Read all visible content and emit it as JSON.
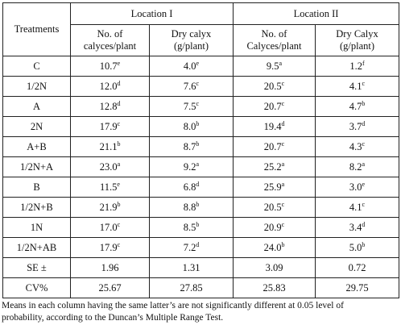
{
  "table": {
    "header": {
      "treatments_label": "Treatments",
      "locations": [
        "Location I",
        "Location II"
      ],
      "subcolumns": [
        [
          "No. of",
          "calyces/plant"
        ],
        [
          "Dry calyx",
          "(g/plant)"
        ],
        [
          "No. of",
          "Calyces/plant"
        ],
        [
          "Dry Calyx",
          "(g/plant)"
        ]
      ]
    },
    "rows": [
      {
        "treatment": "C",
        "cells": [
          [
            "10.7",
            "e"
          ],
          [
            "4.0",
            "e"
          ],
          [
            "9.5",
            "a"
          ],
          [
            "1.2",
            "f"
          ]
        ]
      },
      {
        "treatment": "1/2N",
        "cells": [
          [
            "12.0",
            "d"
          ],
          [
            "7.6",
            "c"
          ],
          [
            "20.5",
            "c"
          ],
          [
            "4.1",
            "c"
          ]
        ]
      },
      {
        "treatment": "A",
        "cells": [
          [
            "12.8",
            "d"
          ],
          [
            "7.5",
            "c"
          ],
          [
            "20.7",
            "c"
          ],
          [
            "4.7",
            "b"
          ]
        ]
      },
      {
        "treatment": "2N",
        "cells": [
          [
            "17.9",
            "c"
          ],
          [
            "8.0",
            "b"
          ],
          [
            "19.4",
            "d"
          ],
          [
            "3.7",
            "d"
          ]
        ]
      },
      {
        "treatment": "A+B",
        "cells": [
          [
            "21.1",
            "b"
          ],
          [
            "8.7",
            "b"
          ],
          [
            "20.7",
            "c"
          ],
          [
            "4.3",
            "c"
          ]
        ]
      },
      {
        "treatment": "1/2N+A",
        "cells": [
          [
            "23.0",
            "a"
          ],
          [
            "9.2",
            "a"
          ],
          [
            "25.2",
            "a"
          ],
          [
            "8.2",
            "a"
          ]
        ]
      },
      {
        "treatment": "B",
        "cells": [
          [
            "11.5",
            "e"
          ],
          [
            "6.8",
            "d"
          ],
          [
            "25.9",
            "a"
          ],
          [
            "3.0",
            "e"
          ]
        ]
      },
      {
        "treatment": "1/2N+B",
        "cells": [
          [
            "21.9",
            "b"
          ],
          [
            "8.8",
            "b"
          ],
          [
            "20.5",
            "c"
          ],
          [
            "4.1",
            "c"
          ]
        ]
      },
      {
        "treatment": "1N",
        "cells": [
          [
            "17.0",
            "c"
          ],
          [
            "8.5",
            "b"
          ],
          [
            "20.9",
            "c"
          ],
          [
            "3.4",
            "d"
          ]
        ]
      },
      {
        "treatment": "1/2N+AB",
        "cells": [
          [
            "17.9",
            "c"
          ],
          [
            "7.2",
            "d"
          ],
          [
            "24.0",
            "b"
          ],
          [
            "5.0",
            "b"
          ]
        ]
      },
      {
        "treatment": "SE ±",
        "cells": [
          [
            "1.96",
            ""
          ],
          [
            "1.31",
            ""
          ],
          [
            "3.09",
            ""
          ],
          [
            "0.72",
            ""
          ]
        ]
      },
      {
        "treatment": "CV%",
        "cells": [
          [
            "25.67",
            ""
          ],
          [
            "27.85",
            ""
          ],
          [
            "25.83",
            ""
          ],
          [
            "29.75",
            ""
          ]
        ]
      }
    ]
  },
  "footnote": {
    "line1": "Means in each column having the same latter’s are not significantly different at 0.05 level of",
    "line2": "probability, according to the Duncan’s Multiple Range Test."
  }
}
